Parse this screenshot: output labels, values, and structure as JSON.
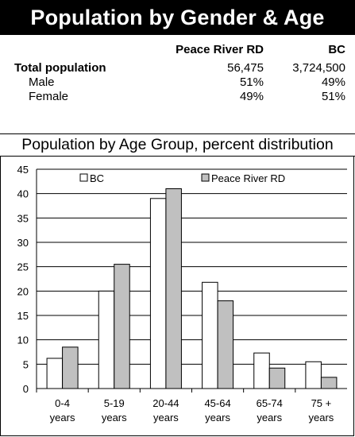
{
  "header": {
    "title": "Population by Gender & Age"
  },
  "stats": {
    "columns": [
      "Peace River RD",
      "BC"
    ],
    "rows": [
      {
        "label": "Total population",
        "peace": "56,475",
        "bc": "3,724,500"
      },
      {
        "label": "Male",
        "peace": "51%",
        "bc": "49%"
      },
      {
        "label": "Female",
        "peace": "49%",
        "bc": "51%"
      }
    ]
  },
  "chart_data": {
    "type": "bar",
    "title": "Population by Age Group, percent distribution",
    "categories": [
      [
        "0-4",
        "years"
      ],
      [
        "5-19",
        "years"
      ],
      [
        "20-44",
        "years"
      ],
      [
        "45-64",
        "years"
      ],
      [
        "65-74",
        "years"
      ],
      [
        "75 +",
        "years"
      ]
    ],
    "series": [
      {
        "name": "BC",
        "color": "#ffffff",
        "values": [
          6.2,
          20.0,
          39.0,
          21.8,
          7.3,
          5.5
        ]
      },
      {
        "name": "Peace River RD",
        "color": "#c0c0c0",
        "values": [
          8.5,
          25.5,
          41.0,
          18.0,
          4.2,
          2.3
        ]
      }
    ],
    "ylim": [
      0,
      45
    ],
    "yticks": [
      0,
      5,
      10,
      15,
      20,
      25,
      30,
      35,
      40,
      45
    ],
    "grid": true,
    "legend_position": "top"
  }
}
